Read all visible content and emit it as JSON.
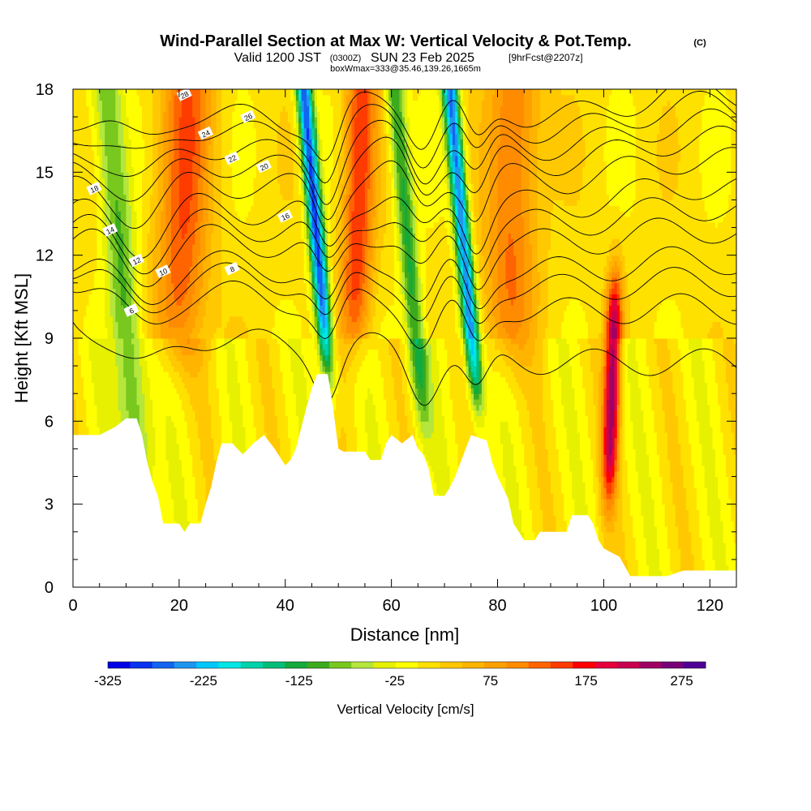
{
  "titles": {
    "main": "Wind-Parallel Section at Max W: Vertical Velocity & Pot.Temp.",
    "copyright": "(C)",
    "valid_prefix": "Valid 1200 JST",
    "valid_utc": "(0300Z)",
    "valid_date": "SUN 23 Feb 2025",
    "forecast": "[9hrFcst@2207z]",
    "boxinfo": "boxWmax=333@35.46,139.26,1665m"
  },
  "chart_data": {
    "type": "heatmap",
    "xlabel": "Distance [nm]",
    "ylabel": "Height [Kft MSL]",
    "xlim": [
      0,
      125
    ],
    "ylim": [
      0,
      18
    ],
    "x_ticks": [
      0,
      20,
      40,
      60,
      80,
      100,
      120
    ],
    "y_ticks": [
      0,
      3,
      6,
      9,
      12,
      15,
      18
    ],
    "colorbar": {
      "label": "Vertical Velocity [cm/s]",
      "tick_labels": [
        "-325",
        "-225",
        "-125",
        "-25",
        "75",
        "175",
        "275"
      ],
      "min": -325,
      "max": 300,
      "step": 25,
      "colors": [
        "#0000e6",
        "#0a32f0",
        "#1464f0",
        "#1e96f0",
        "#00c8ff",
        "#00e6e6",
        "#00d2aa",
        "#00be78",
        "#14aa3c",
        "#3caa1e",
        "#78c81e",
        "#b4e63c",
        "#e6f000",
        "#ffff00",
        "#ffe100",
        "#ffc800",
        "#ffb400",
        "#ffa000",
        "#ff8c00",
        "#ff6400",
        "#ff3c00",
        "#ff0000",
        "#e6003c",
        "#c80050",
        "#a00064",
        "#780078",
        "#500096"
      ]
    },
    "updrafts": [
      {
        "x": 20,
        "w": 5,
        "z_bottom": 8.5,
        "value": 175
      },
      {
        "x": 53,
        "w": 3,
        "z_bottom": 9,
        "value": 200
      },
      {
        "x": 82,
        "w": 5,
        "z_bottom": 8.5,
        "value": 160
      },
      {
        "x": 101,
        "w": 1.5,
        "z_bottom": 3.5,
        "z_top": 11,
        "value": 300
      }
    ],
    "downdrafts": [
      {
        "x": 48,
        "w": 1.5,
        "z_bottom": 8,
        "value": -275
      },
      {
        "x": 66,
        "w": 1.8,
        "z_bottom": 6,
        "value": -100
      },
      {
        "x": 76,
        "w": 1.5,
        "z_bottom": 7,
        "value": -250
      },
      {
        "x": 13,
        "w": 3,
        "z_bottom": 3,
        "value": -75
      }
    ],
    "terrain": [
      [
        0,
        5.5
      ],
      [
        5,
        5.5
      ],
      [
        8,
        5.8
      ],
      [
        10,
        6.1
      ],
      [
        12,
        6.1
      ],
      [
        13,
        5.5
      ],
      [
        14,
        4.5
      ],
      [
        15,
        3.8
      ],
      [
        16,
        3.3
      ],
      [
        17,
        2.3
      ],
      [
        20,
        2.3
      ],
      [
        21,
        2
      ],
      [
        22,
        2.3
      ],
      [
        24,
        2.3
      ],
      [
        25,
        3
      ],
      [
        26,
        3.6
      ],
      [
        27,
        4.5
      ],
      [
        28,
        5.2
      ],
      [
        30,
        5.2
      ],
      [
        32,
        4.8
      ],
      [
        34,
        5.2
      ],
      [
        36,
        5.5
      ],
      [
        38,
        5
      ],
      [
        40,
        4.4
      ],
      [
        41,
        4.6
      ],
      [
        42,
        5
      ],
      [
        44,
        6.5
      ],
      [
        45,
        7.2
      ],
      [
        46,
        7.7
      ],
      [
        48,
        7.7
      ],
      [
        49,
        6.5
      ],
      [
        50,
        5
      ],
      [
        51,
        4.9
      ],
      [
        55,
        4.9
      ],
      [
        56,
        4.6
      ],
      [
        58,
        4.6
      ],
      [
        59,
        5.2
      ],
      [
        60,
        5.5
      ],
      [
        62,
        5.2
      ],
      [
        64,
        5.5
      ],
      [
        65,
        5
      ],
      [
        66,
        4.8
      ],
      [
        67,
        4.3
      ],
      [
        68,
        3.3
      ],
      [
        70,
        3.3
      ],
      [
        71,
        3.6
      ],
      [
        72,
        4
      ],
      [
        73,
        4.5
      ],
      [
        75,
        5.5
      ],
      [
        78,
        5.3
      ],
      [
        79,
        4.5
      ],
      [
        80,
        4
      ],
      [
        82,
        3.2
      ],
      [
        83,
        2.3
      ],
      [
        84,
        2
      ],
      [
        85,
        1.7
      ],
      [
        87,
        1.7
      ],
      [
        88,
        2
      ],
      [
        93,
        2
      ],
      [
        94,
        2.6
      ],
      [
        97,
        2.6
      ],
      [
        98,
        2.3
      ],
      [
        99,
        1.7
      ],
      [
        100,
        1.4
      ],
      [
        103,
        1.1
      ],
      [
        105,
        0.4
      ],
      [
        112,
        0.4
      ],
      [
        115,
        0.6
      ],
      [
        125,
        0.6
      ]
    ],
    "theta_contours": [
      {
        "label": "6",
        "base": 9.8,
        "top": 4.5,
        "grow": 0.4,
        "label_at": [
          11,
          10.0
        ]
      },
      {
        "label": "8",
        "base": 11.2,
        "top": 7.5,
        "grow": 0.5,
        "label_at": [
          30,
          11.5
        ]
      },
      {
        "label": "10",
        "base": 11.6,
        "top": 9.5,
        "grow": 0.6,
        "label_at": [
          17,
          11.4
        ]
      },
      {
        "label": "12",
        "base": 11.8,
        "top": 11.3,
        "grow": 0.7,
        "label_at": [
          12,
          11.8
        ]
      },
      {
        "label": "14",
        "base": 12.6,
        "top": 12.9,
        "grow": 0.8,
        "label_at": [
          7,
          12.9
        ]
      },
      {
        "label": "16",
        "base": 13.0,
        "top": 14.4,
        "grow": 0.9,
        "label_at": [
          40,
          13.4
        ]
      },
      {
        "label": "18",
        "base": 13.5,
        "top": 15.6,
        "grow": 1.0,
        "label_at": [
          4,
          14.4
        ]
      },
      {
        "label": "20",
        "base": 14.4,
        "top": 16.6,
        "grow": 1.1,
        "label_at": [
          36,
          15.2
        ]
      },
      {
        "label": "22",
        "base": 15.1,
        "top": 17.3,
        "grow": 1.2,
        "label_at": [
          30,
          15.5
        ]
      },
      {
        "label": "24",
        "base": 15.7,
        "top": 17.8,
        "grow": 1.3,
        "label_at": [
          25,
          16.4
        ]
      },
      {
        "label": "26",
        "base": 16.4,
        "top": 18.2,
        "grow": 1.4,
        "label_at": [
          33,
          17.0
        ]
      },
      {
        "label": "28",
        "base": 17.0,
        "top": 18.6,
        "grow": 1.5,
        "label_at": [
          21,
          17.8
        ]
      }
    ]
  }
}
